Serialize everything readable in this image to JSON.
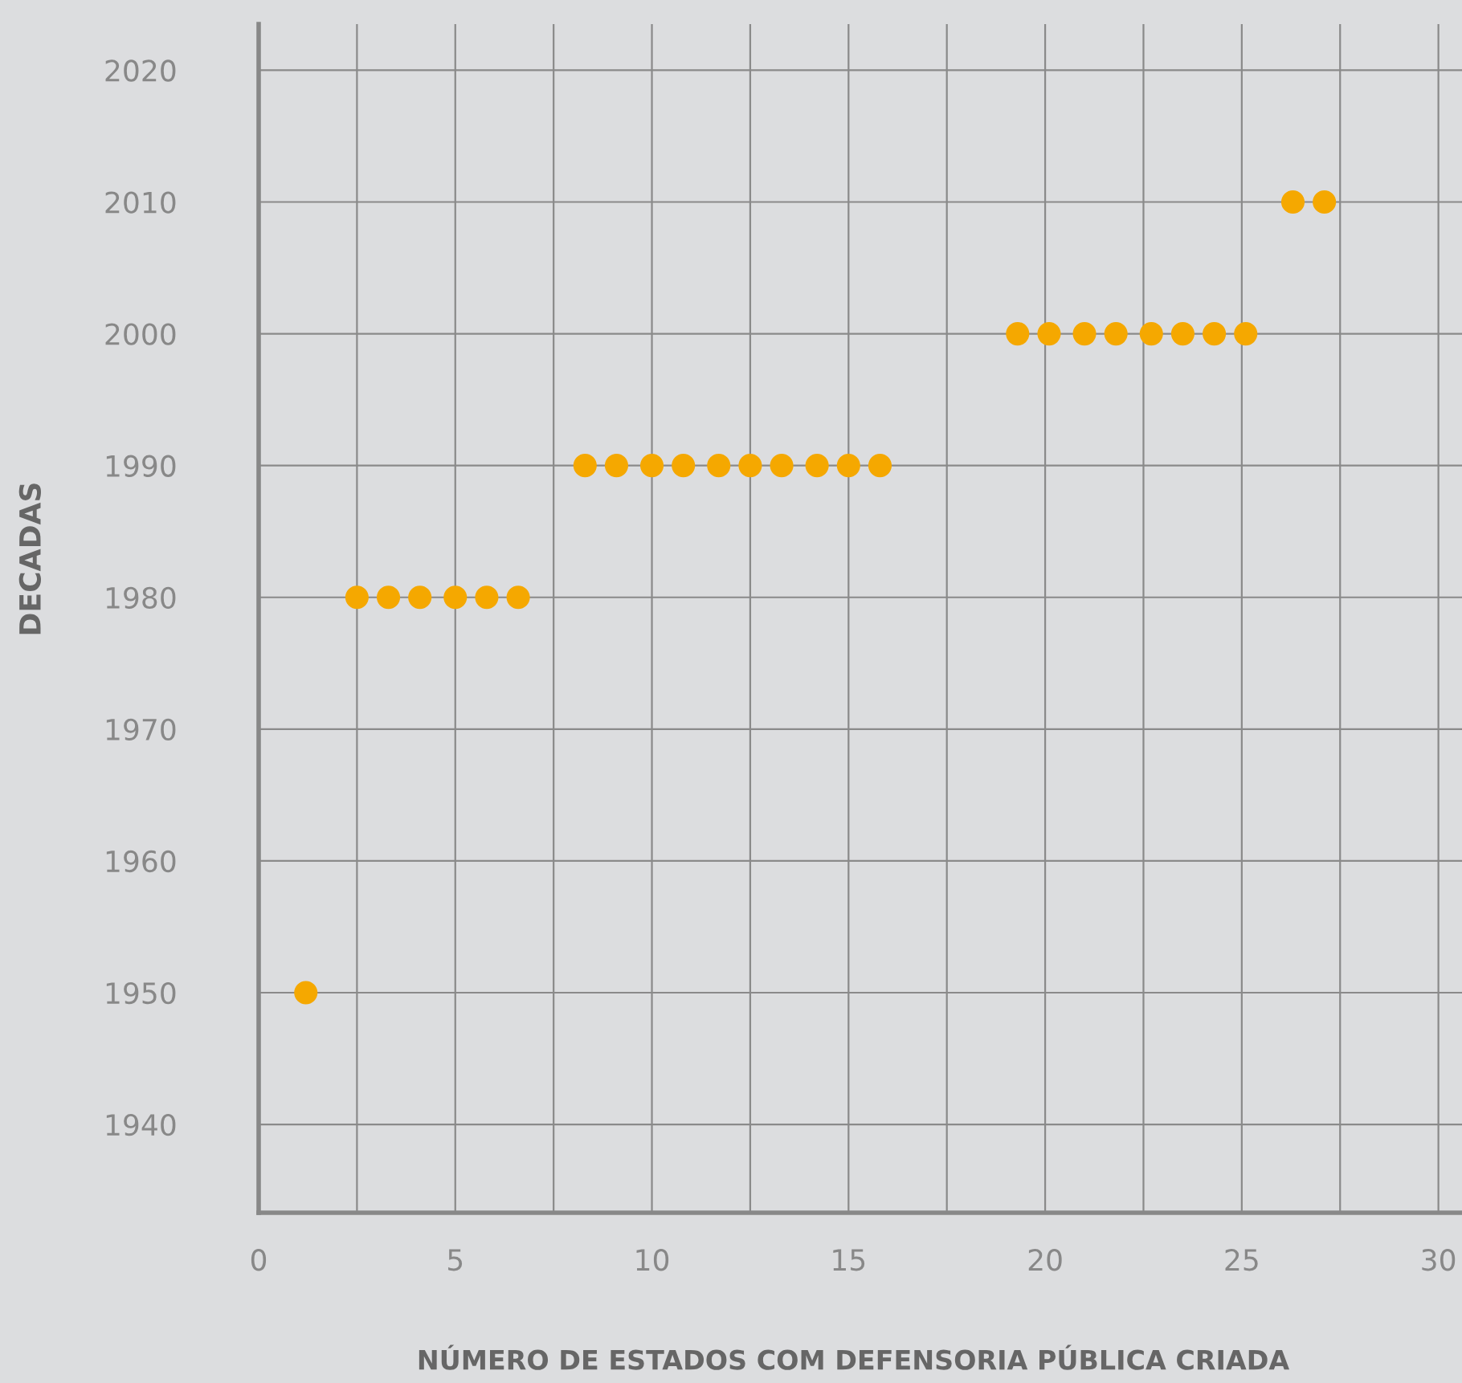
{
  "chart_data": {
    "type": "scatter",
    "xlabel": "NÚMERO DE ESTADOS COM DEFENSORIA PÚBLICA CRIADA",
    "ylabel": "DECADAS",
    "series": [
      {
        "color": "#f5a800",
        "x": [
          1.2,
          2.5,
          3.3,
          4.1,
          5.0,
          5.8,
          6.6,
          8.3,
          9.1,
          10.0,
          10.8,
          11.7,
          12.5,
          13.3,
          14.2,
          15.0,
          15.8,
          19.3,
          20.1,
          21.0,
          21.8,
          22.7,
          23.5,
          24.3,
          25.1,
          26.3,
          27.1
        ],
        "values": [
          1950,
          1980,
          1980,
          1980,
          1980,
          1980,
          1980,
          1990,
          1990,
          1990,
          1990,
          1990,
          1990,
          1990,
          1990,
          1990,
          1990,
          2000,
          2000,
          2000,
          2000,
          2000,
          2000,
          2000,
          2000,
          2010,
          2010
        ]
      }
    ],
    "xlim": [
      0,
      30.6
    ],
    "ylim": [
      1933.3,
      2023.5
    ],
    "xticks": [
      0,
      {
        "value": 2.5,
        "label": null
      },
      5,
      {
        "value": 7.5,
        "label": null
      },
      10,
      {
        "value": 12.5,
        "label": null
      },
      15,
      {
        "value": 17.5,
        "label": null
      },
      20,
      {
        "value": 22.5,
        "label": null
      },
      25,
      {
        "value": 27.5,
        "label": null
      },
      30
    ],
    "yticks": [
      1940,
      1950,
      1960,
      1970,
      1980,
      1990,
      2000,
      2010,
      2020
    ],
    "grid": true,
    "marker": "circle"
  }
}
